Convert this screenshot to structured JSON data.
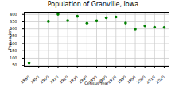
{
  "chart_data": {
    "type": "scatter",
    "title": "Population of Granville, Iowa",
    "x_label": "Census Year",
    "y_label": "Population",
    "x": [
      1880,
      1900,
      1910,
      1920,
      1930,
      1940,
      1950,
      1960,
      1970,
      1980,
      1990,
      2000,
      2010,
      2020
    ],
    "values": [
      66,
      353,
      401,
      358,
      387,
      340,
      356,
      377,
      382,
      341,
      298,
      321,
      312,
      310
    ],
    "color": "#008000",
    "marker": "circle",
    "xlim": [
      1875,
      2025
    ],
    "xticks": [
      1880,
      1890,
      1900,
      1910,
      1920,
      1930,
      1940,
      1950,
      1960,
      1970,
      1980,
      1990,
      2000,
      2010,
      2020
    ],
    "ylim": [
      40,
      415
    ],
    "yticks": [
      50,
      100,
      150,
      200,
      250,
      300,
      350,
      400
    ],
    "grid": true
  }
}
